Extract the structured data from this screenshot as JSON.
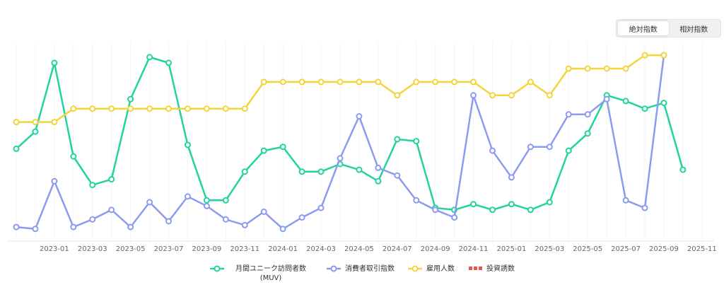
{
  "controls": {
    "options": [
      "絶対指数",
      "相対指数"
    ],
    "selected": 0
  },
  "chart_data": {
    "type": "line",
    "categories": [
      null,
      null,
      "2023-01",
      null,
      "2023-03",
      null,
      "2023-05",
      null,
      "2023-07",
      null,
      "2023-09",
      null,
      "2023-11",
      null,
      "2024-01",
      null,
      "2024-03",
      null,
      "2024-05",
      null,
      "2024-07",
      null,
      "2024-09",
      null,
      "2024-11",
      null,
      "2025-01",
      null,
      "2025-03",
      null,
      "2025-05",
      null,
      "2025-07",
      null,
      "2025-09",
      null,
      "2025-11"
    ],
    "ylim": [
      0,
      100
    ],
    "series": [
      {
        "name": "月間ユニーク訪問者数 (MUV)",
        "color": "#22d3a0",
        "values": [
          48,
          57,
          93,
          44,
          29,
          32,
          74,
          96,
          93,
          50,
          21,
          21,
          36,
          47,
          49,
          36,
          36,
          40,
          37,
          31,
          53,
          52,
          17,
          16,
          19,
          16,
          19,
          16,
          20,
          47,
          56,
          76,
          73,
          69,
          72,
          37,
          null
        ]
      },
      {
        "name": "消費者取引指数",
        "color": "#8c9bf0",
        "values": [
          7,
          6,
          31,
          7,
          11,
          16,
          7,
          20,
          10,
          23,
          18,
          11,
          8,
          15,
          6,
          12,
          17,
          43,
          65,
          38,
          34,
          21,
          16,
          12,
          76,
          47,
          33,
          49,
          49,
          66,
          66,
          74,
          21,
          17,
          97,
          null,
          null
        ]
      },
      {
        "name": "雇用人数",
        "color": "#f4d43a",
        "values": [
          62,
          62,
          62,
          69,
          69,
          69,
          69,
          69,
          69,
          69,
          69,
          69,
          69,
          83,
          83,
          83,
          83,
          83,
          83,
          83,
          76,
          83,
          83,
          83,
          83,
          76,
          76,
          83,
          76,
          90,
          90,
          90,
          90,
          97,
          97,
          null,
          null
        ]
      },
      {
        "name": "投資誘数",
        "color": "#e8574f",
        "line_style": "dashed",
        "values": [
          null,
          null,
          null,
          null,
          null,
          null,
          null,
          null,
          null,
          null,
          null,
          null,
          null,
          null,
          null,
          null,
          null,
          null,
          null,
          null,
          null,
          null,
          null,
          null,
          null,
          null,
          null,
          null,
          null,
          null,
          null,
          null,
          null,
          null,
          null,
          null,
          null
        ]
      }
    ]
  }
}
